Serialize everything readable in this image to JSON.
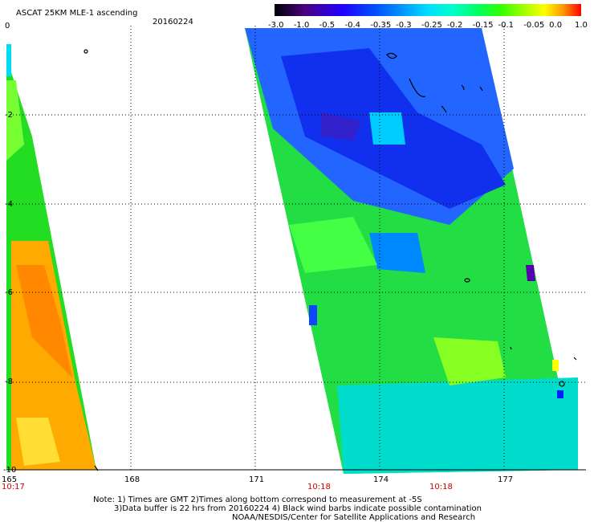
{
  "header": {
    "title": "ASCAT 25KM MLE-1 ascending",
    "date": "20160224"
  },
  "colorbar": {
    "labels": [
      "-3.0",
      "-1.0",
      "-0.5",
      "-0.4",
      "-0.35",
      "-0.3",
      "-0.25",
      "-0.2",
      "-0.15",
      "-0.1",
      "-0.05",
      "0.0",
      "1.0"
    ],
    "colors": [
      "#000000",
      "#4b0082",
      "#2000ff",
      "#0044ff",
      "#0088ff",
      "#00ccff",
      "#00ffdd",
      "#00ff88",
      "#00ff00",
      "#88ff00",
      "#ffff00",
      "#ff8800",
      "#ff0000"
    ]
  },
  "axes": {
    "lat_labels": [
      "0",
      "-2",
      "-4",
      "-6",
      "-8",
      "-10"
    ],
    "lon_labels": [
      "165",
      "168",
      "171",
      "174",
      "177"
    ],
    "time_labels": [
      "10:17",
      "10:18",
      "10:18"
    ]
  },
  "notes": {
    "line1": "Note: 1) Times are GMT 2)Times along bottom correspond to measurement at -5S",
    "line2": "3)Data buffer is 22 hrs from 20160224 4) Black wind barbs indicate possible contamination",
    "line3": "NOAA/NESDIS/Center for Satellite Applications and Research"
  }
}
